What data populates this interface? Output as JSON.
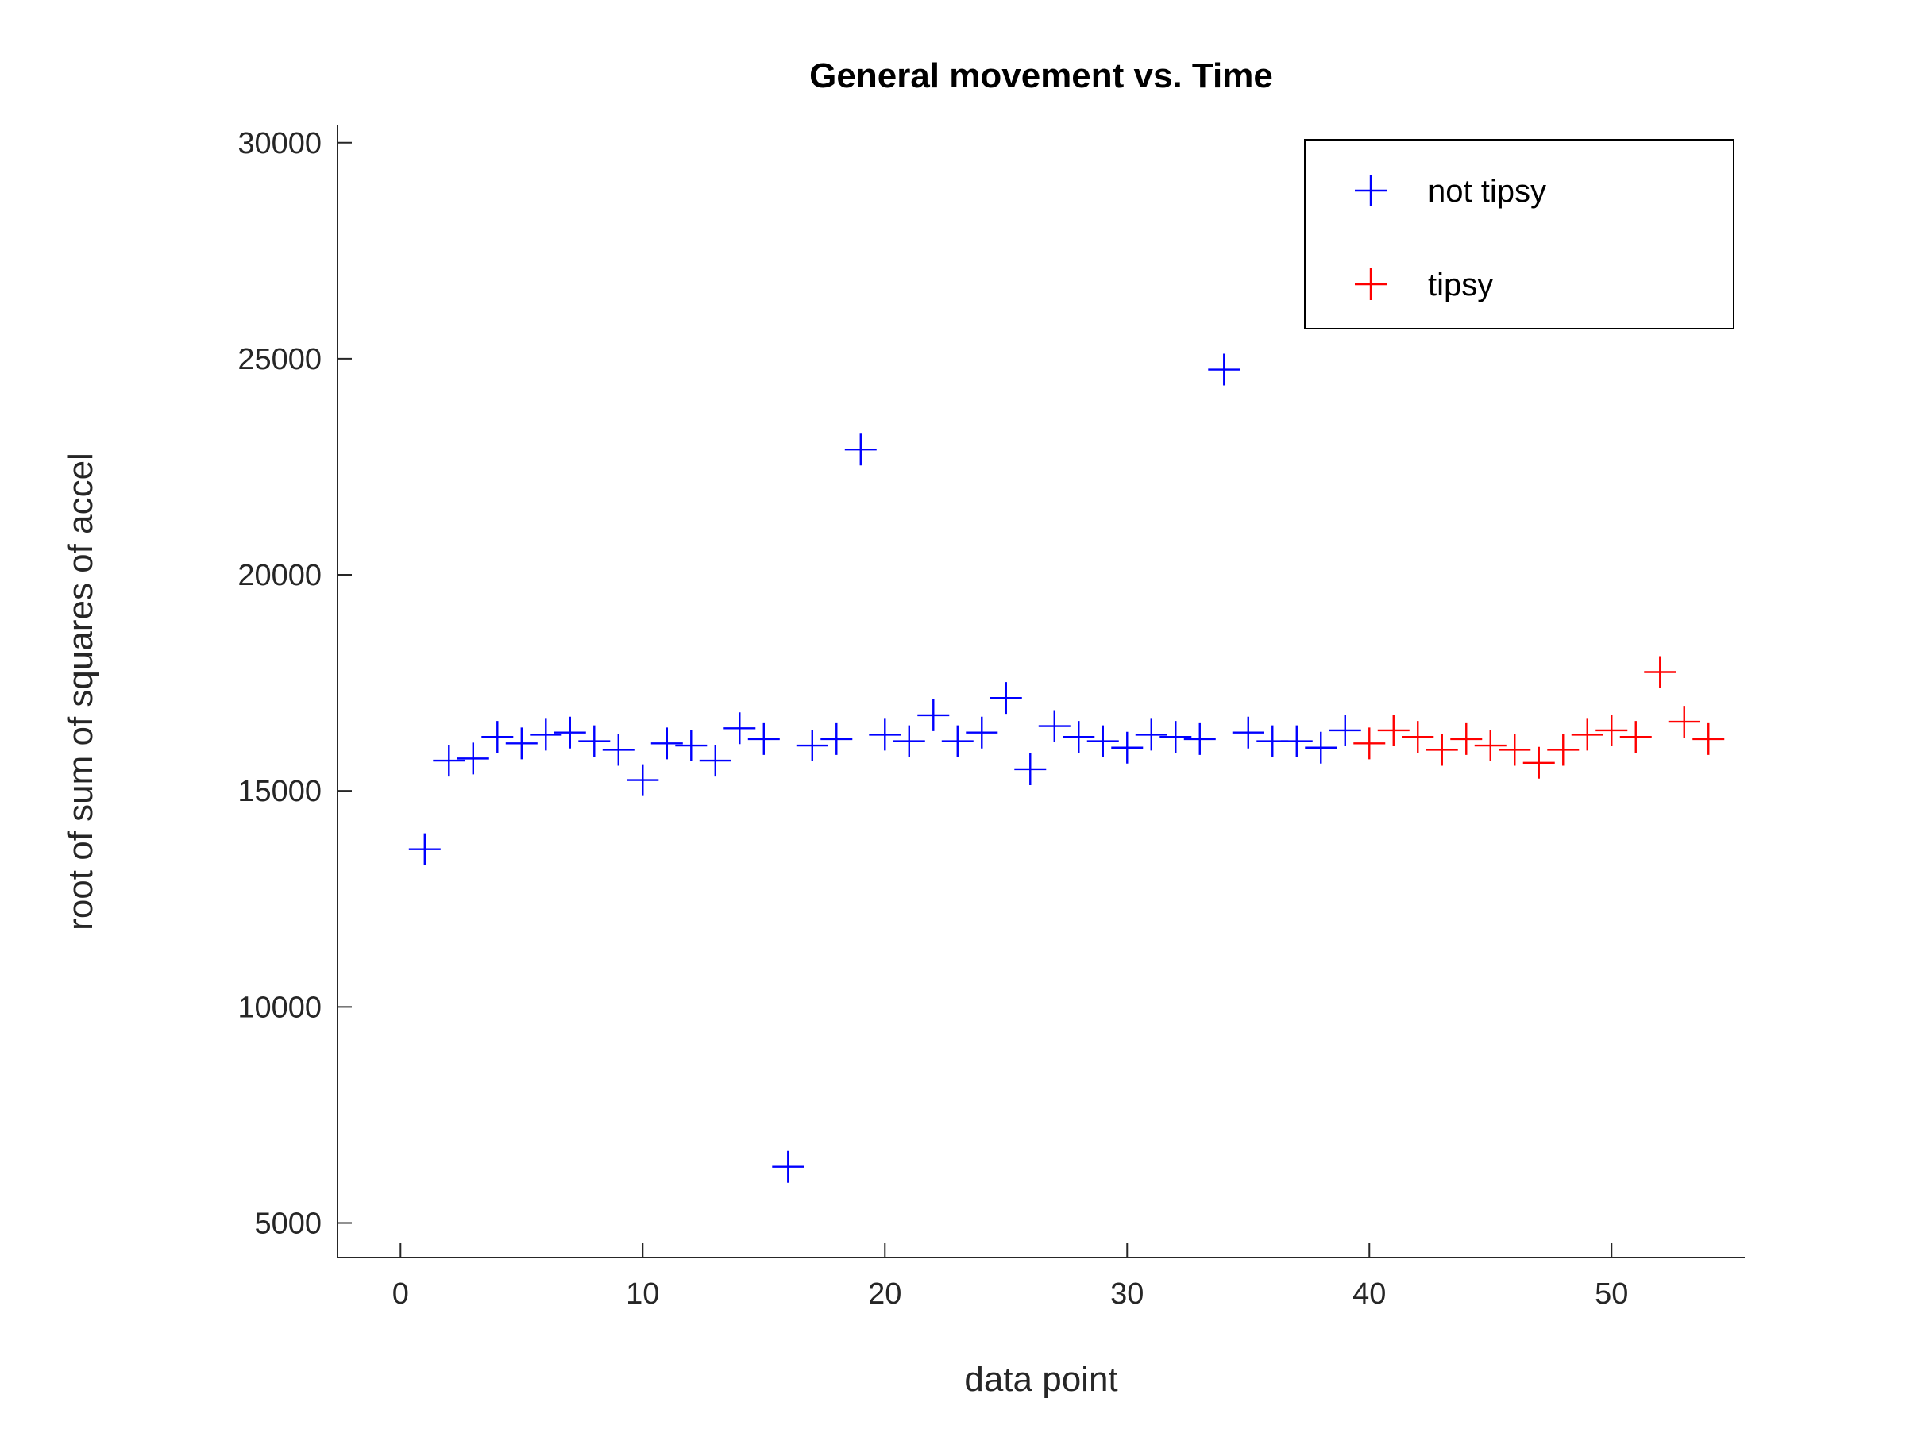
{
  "chart_data": {
    "type": "scatter",
    "title": "General movement vs. Time",
    "xlabel": "data point",
    "ylabel": "root of sum of squares of accel",
    "xlim": [
      -2.6,
      55.5
    ],
    "ylim": [
      4200,
      30400
    ],
    "x_ticks": [
      0,
      10,
      20,
      30,
      40,
      50
    ],
    "y_ticks": [
      5000,
      10000,
      15000,
      20000,
      25000,
      30000
    ],
    "x_tick_labels": [
      "0",
      "10",
      "20",
      "30",
      "40",
      "50"
    ],
    "y_tick_labels": [
      "5000",
      "10000",
      "15000",
      "20000",
      "25000",
      "30000"
    ],
    "grid": false,
    "legend_position": "top-right",
    "marker": "plus",
    "series": [
      {
        "name": "not tipsy",
        "color": "#0000ff",
        "x": [
          1,
          2,
          3,
          4,
          5,
          6,
          7,
          8,
          9,
          10,
          11,
          12,
          13,
          14,
          15,
          16,
          17,
          18,
          19,
          20,
          21,
          22,
          23,
          24,
          25,
          26,
          27,
          28,
          29,
          30,
          31,
          32,
          33,
          34,
          35,
          36,
          37,
          38,
          39
        ],
        "y": [
          13650,
          15700,
          15750,
          16250,
          16100,
          16300,
          16350,
          16150,
          15950,
          15250,
          16100,
          16050,
          15700,
          16450,
          16200,
          6300,
          16050,
          16200,
          22900,
          16300,
          16150,
          16750,
          16150,
          16350,
          17150,
          15500,
          16500,
          16250,
          16150,
          16000,
          16300,
          16250,
          16200,
          24750,
          16350,
          16150,
          16150,
          16000,
          16400
        ]
      },
      {
        "name": "tipsy",
        "color": "#ff0000",
        "x": [
          40,
          41,
          42,
          43,
          44,
          45,
          46,
          47,
          48,
          49,
          50,
          51,
          52,
          53,
          54
        ],
        "y": [
          16100,
          16400,
          16250,
          15950,
          16200,
          16050,
          15950,
          15650,
          15950,
          16300,
          16400,
          16250,
          17750,
          16600,
          16200
        ]
      }
    ]
  }
}
